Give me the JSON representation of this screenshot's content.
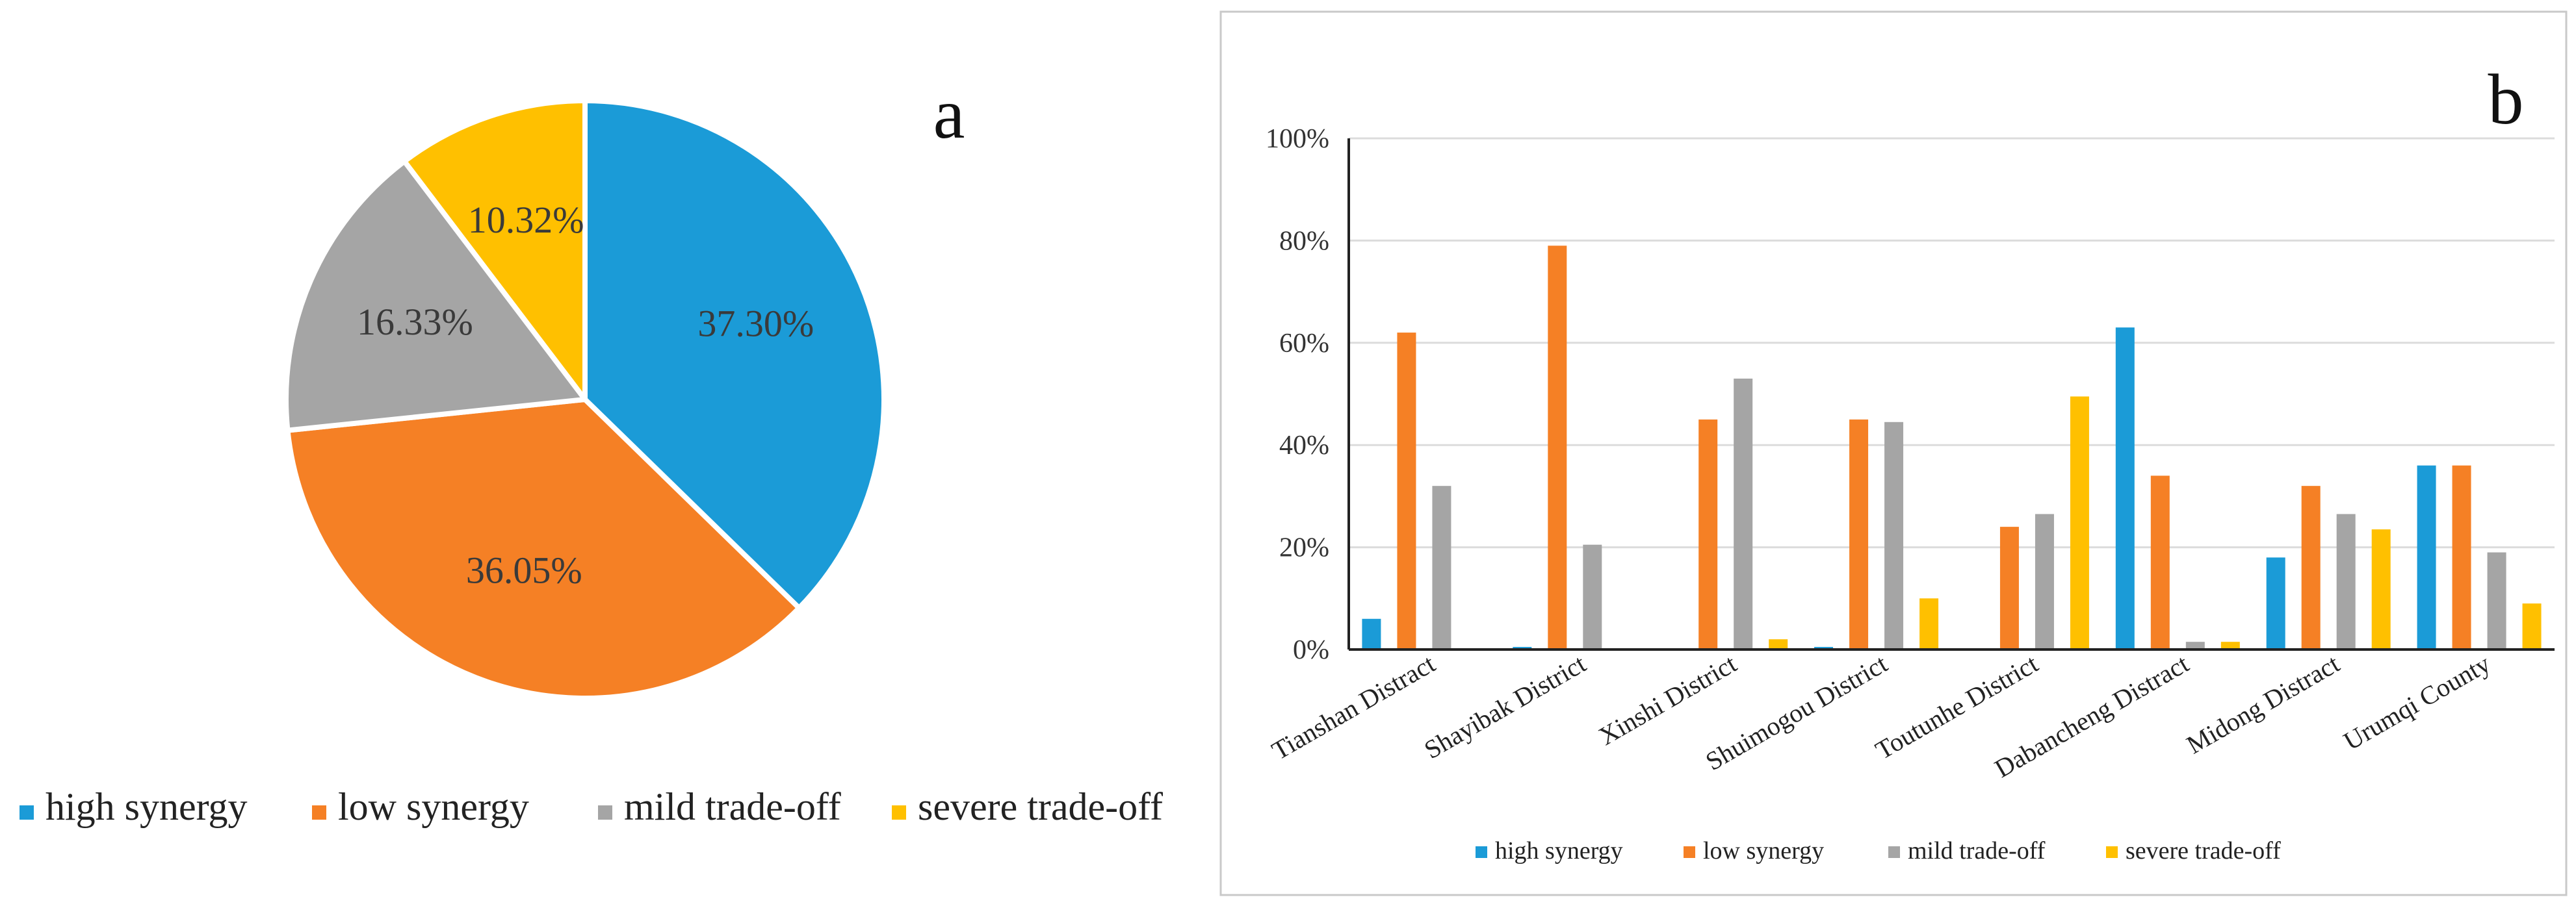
{
  "chart_data": [
    {
      "type": "pie",
      "panel_label": "a",
      "slices": [
        {
          "label": "high synergy",
          "value": 37.3,
          "display": "37.30%",
          "color": "#1B9BD7"
        },
        {
          "label": "low synergy",
          "value": 36.05,
          "display": "36.05%",
          "color": "#F58025"
        },
        {
          "label": "mild trade-off",
          "value": 16.33,
          "display": "16.33%",
          "color": "#A5A5A5"
        },
        {
          "label": "severe trade-off",
          "value": 10.32,
          "display": "10.32%",
          "color": "#FFC000"
        }
      ],
      "legend": [
        "high synergy",
        "low synergy",
        "mild trade-off",
        "severe trade-off"
      ],
      "legend_position": "bottom"
    },
    {
      "type": "bar",
      "panel_label": "b",
      "categories": [
        "Tianshan Distract",
        "Shayibak District",
        "Xinshi District",
        "Shuimogou District",
        "Toutunhe District",
        "Dabancheng Distract",
        "Midong Distract",
        "Urumqi County"
      ],
      "series": [
        {
          "name": "high synergy",
          "color": "#1B9BD7",
          "values": [
            6,
            0.5,
            0,
            0.5,
            0,
            63,
            18,
            36
          ]
        },
        {
          "name": "low synergy",
          "color": "#F58025",
          "values": [
            62,
            79,
            45,
            45,
            24,
            34,
            32,
            36
          ]
        },
        {
          "name": "mild trade-off",
          "color": "#A5A5A5",
          "values": [
            32,
            20.5,
            53,
            44.5,
            26.5,
            1.5,
            26.5,
            19
          ]
        },
        {
          "name": "severe trade-off",
          "color": "#FFC000",
          "values": [
            0,
            0,
            2,
            10,
            49.5,
            1.5,
            23.5,
            9
          ]
        }
      ],
      "y_ticks": [
        "0%",
        "20%",
        "40%",
        "60%",
        "80%",
        "100%"
      ],
      "ylim": [
        0,
        100
      ],
      "grid": true,
      "legend_position": "bottom"
    }
  ]
}
